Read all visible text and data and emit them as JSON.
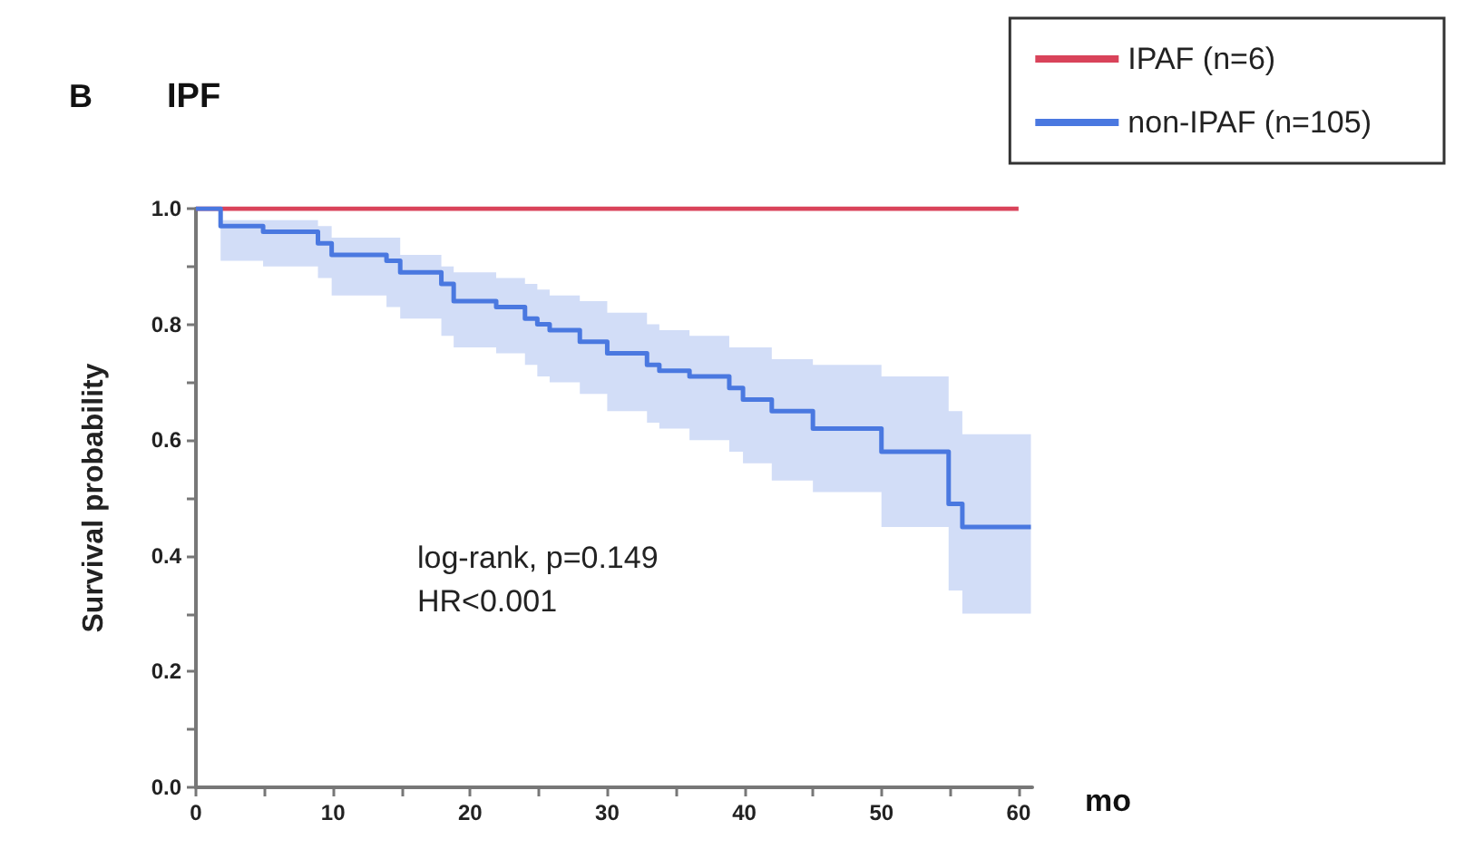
{
  "chart_data": {
    "type": "step",
    "title": "IPF",
    "xlabel": "mo",
    "ylabel": "Survival probability",
    "annotations": [
      "B",
      "log-rank, p=0.149",
      "HR<0.001"
    ],
    "series": [
      {
        "name": "IPAF (n=6)",
        "color": "#d9435a",
        "x": [
          0,
          60
        ],
        "values": [
          1,
          1
        ]
      },
      {
        "name": "non-IPAF (n=105)",
        "color": "#4a78e0",
        "x": [
          0,
          1.8,
          4.9,
          8.9,
          9.9,
          13.9,
          14.9,
          17.9,
          18.8,
          21.9,
          24,
          24.9,
          25.8,
          28,
          30,
          32.9,
          33.8,
          36,
          38.9,
          39.9,
          42,
          45,
          50,
          54.9,
          55.9,
          60.9
        ],
        "values": [
          1,
          0.97,
          0.96,
          0.94,
          0.92,
          0.91,
          0.89,
          0.87,
          0.84,
          0.83,
          0.81,
          0.8,
          0.79,
          0.77,
          0.75,
          0.73,
          0.72,
          0.71,
          0.69,
          0.67,
          0.65,
          0.62,
          0.58,
          0.49,
          0.45,
          0.45
        ],
        "upper": [
          1,
          0.98,
          0.98,
          0.97,
          0.95,
          0.95,
          0.92,
          0.9,
          0.89,
          0.88,
          0.87,
          0.86,
          0.85,
          0.84,
          0.82,
          0.8,
          0.79,
          0.78,
          0.76,
          0.76,
          0.74,
          0.73,
          0.71,
          0.65,
          0.61,
          0.61
        ],
        "lower": [
          1,
          0.91,
          0.9,
          0.88,
          0.85,
          0.83,
          0.81,
          0.78,
          0.76,
          0.75,
          0.73,
          0.71,
          0.7,
          0.68,
          0.65,
          0.63,
          0.62,
          0.6,
          0.58,
          0.56,
          0.53,
          0.51,
          0.45,
          0.34,
          0.3,
          0.3
        ]
      }
    ],
    "xlim": [
      0,
      61
    ],
    "xticks": [
      0,
      {
        "value": 5,
        "label": null
      },
      10,
      {
        "value": 15,
        "label": null
      },
      20,
      {
        "value": 25,
        "label": null
      },
      30,
      {
        "value": 35,
        "label": null
      },
      40,
      {
        "value": 45,
        "label": null
      },
      50,
      {
        "value": 55,
        "label": null
      },
      60
    ],
    "ylim": [
      0,
      1
    ],
    "yticks": [
      {
        "value": 0,
        "label": "0.0"
      },
      {
        "value": 0.1,
        "label": null
      },
      0.2,
      {
        "value": 0.3,
        "label": null
      },
      0.4,
      {
        "value": 0.5,
        "label": null
      },
      0.6,
      {
        "value": 0.7,
        "label": null
      },
      0.8,
      {
        "value": 0.9,
        "label": null
      },
      {
        "value": 1,
        "label": "1.0"
      }
    ],
    "grid": false,
    "legend": "top right",
    "marker": "none",
    "line_style": "solid"
  }
}
